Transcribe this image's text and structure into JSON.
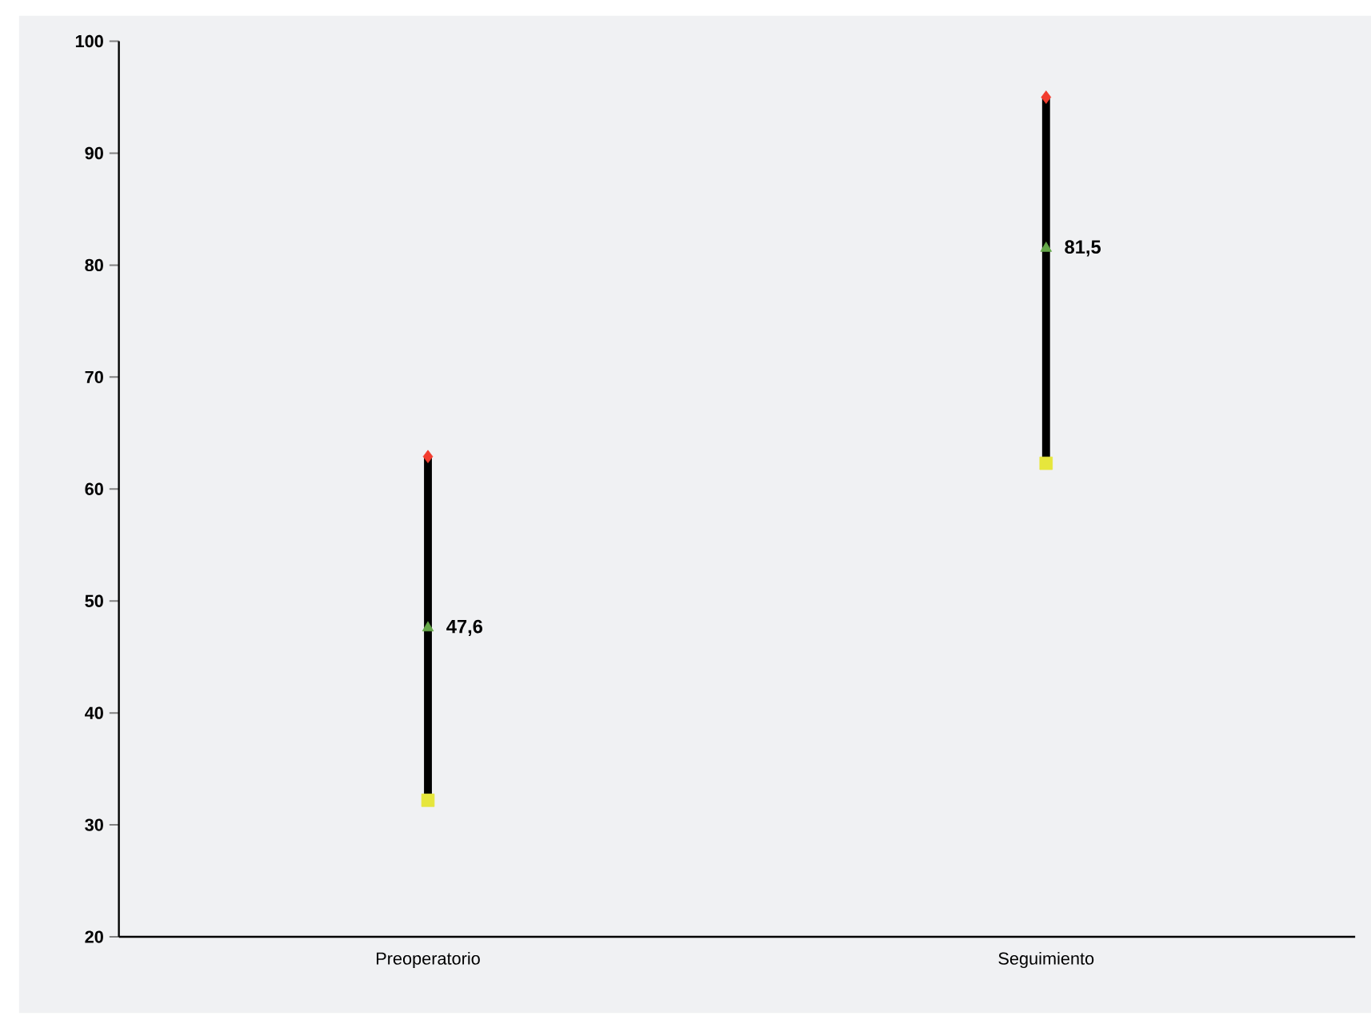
{
  "chart_data": {
    "type": "scatter",
    "categories": [
      "Preoperatorio",
      "Seguimiento"
    ],
    "ylim": [
      20,
      100
    ],
    "yticks": [
      20,
      30,
      40,
      50,
      60,
      70,
      80,
      90,
      100
    ],
    "grid": false,
    "series": [
      {
        "type": "bar",
        "color": "#000000",
        "base": [
          32.2,
          62.3
        ],
        "values": [
          30.7,
          32.7
        ]
      },
      {
        "marker": "diamond",
        "color": "#f23c2e",
        "values": [
          62.9,
          95.0
        ]
      },
      {
        "marker": "triangle",
        "color": "#66a84a",
        "values": [
          47.6,
          81.5
        ],
        "value_labels": [
          "47,6",
          "81,5"
        ]
      },
      {
        "marker": "square",
        "color": "#e6e63c",
        "values": [
          32.2,
          62.3
        ]
      }
    ]
  }
}
